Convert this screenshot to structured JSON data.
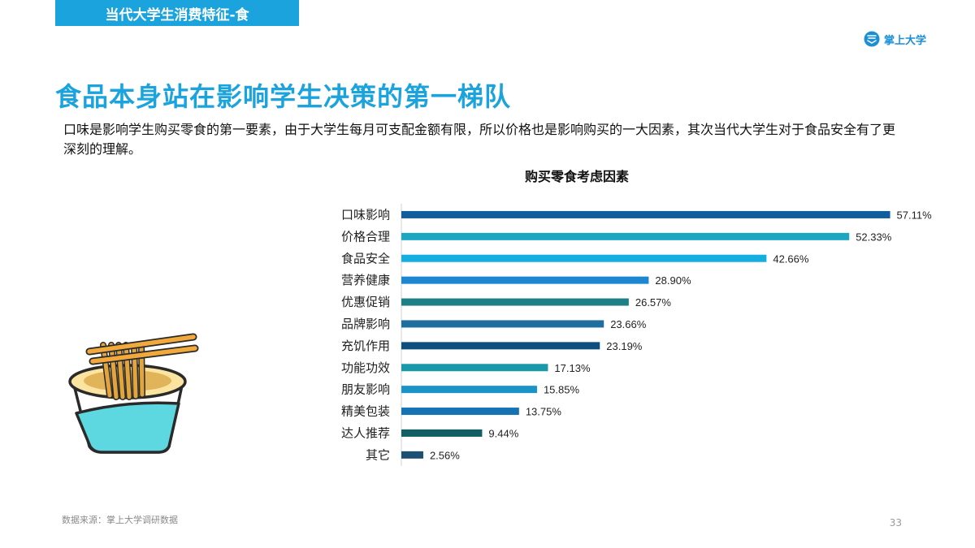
{
  "header": {
    "section_tab": "当代大学生消费特征-食",
    "brand_name": "掌上大学"
  },
  "main": {
    "headline": "食品本身站在影响学生决策的第一梯队",
    "description": "口味是影响学生购买零食的第一要素，由于大学生每月可支配金额有限，所以价格也是影响购买的一大因素，其次当代大学生对于食品安全有了更深刻的理解。"
  },
  "footer": {
    "source": "数据来源：掌上大学调研数据",
    "page_number": "33"
  },
  "colors": {
    "accent": "#1aa3dc",
    "bars": [
      "#0f5f9e",
      "#1ba7c2",
      "#15aee0",
      "#1b86d1",
      "#1f7f86",
      "#1e6f9e",
      "#0f4f7e",
      "#1a9aa8",
      "#1a93c6",
      "#1673b3",
      "#135f66",
      "#1c4f72"
    ]
  },
  "chart_data": {
    "type": "bar",
    "orientation": "horizontal",
    "title": "购买零食考虑因素",
    "categories": [
      "口味影响",
      "价格合理",
      "食品安全",
      "营养健康",
      "优惠促销",
      "品牌影响",
      "充饥作用",
      "功能功效",
      "朋友影响",
      "精美包装",
      "达人推荐",
      "其它"
    ],
    "values": [
      57.11,
      52.33,
      42.66,
      28.9,
      26.57,
      23.66,
      23.19,
      17.13,
      15.85,
      13.75,
      9.44,
      2.56
    ],
    "value_labels": [
      "57.11%",
      "52.33%",
      "42.66%",
      "28.90%",
      "26.57%",
      "23.66%",
      "23.19%",
      "17.13%",
      "15.85%",
      "13.75%",
      "9.44%",
      "2.56%"
    ],
    "xlim": [
      0,
      60
    ],
    "grid": false,
    "legend": "none"
  }
}
